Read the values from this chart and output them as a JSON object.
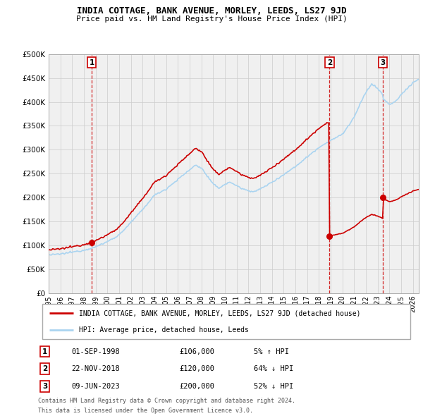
{
  "title": "INDIA COTTAGE, BANK AVENUE, MORLEY, LEEDS, LS27 9JD",
  "subtitle": "Price paid vs. HM Land Registry's House Price Index (HPI)",
  "ylim": [
    0,
    500000
  ],
  "yticks": [
    0,
    50000,
    100000,
    150000,
    200000,
    250000,
    300000,
    350000,
    400000,
    450000,
    500000
  ],
  "ytick_labels": [
    "£0",
    "£50K",
    "£100K",
    "£150K",
    "£200K",
    "£250K",
    "£300K",
    "£350K",
    "£400K",
    "£450K",
    "£500K"
  ],
  "xlim_start": 1995.0,
  "xlim_end": 2026.5,
  "line1_color": "#cc0000",
  "line2_color": "#aad4f0",
  "transactions": [
    {
      "num": 1,
      "year": 1998.67,
      "price": 106000,
      "label": "1",
      "date": "01-SEP-1998",
      "price_str": "£106,000",
      "hpi_str": "5% ↑ HPI"
    },
    {
      "num": 2,
      "year": 2018.9,
      "price": 120000,
      "label": "2",
      "date": "22-NOV-2018",
      "price_str": "£120,000",
      "hpi_str": "64% ↓ HPI"
    },
    {
      "num": 3,
      "year": 2023.44,
      "price": 200000,
      "label": "3",
      "date": "09-JUN-2023",
      "price_str": "£200,000",
      "hpi_str": "52% ↓ HPI"
    }
  ],
  "legend_line1": "INDIA COTTAGE, BANK AVENUE, MORLEY, LEEDS, LS27 9JD (detached house)",
  "legend_line2": "HPI: Average price, detached house, Leeds",
  "footer1": "Contains HM Land Registry data © Crown copyright and database right 2024.",
  "footer2": "This data is licensed under the Open Government Licence v3.0.",
  "background_color": "#ffffff",
  "grid_color": "#cccccc",
  "plot_bg": "#f0f0f0"
}
